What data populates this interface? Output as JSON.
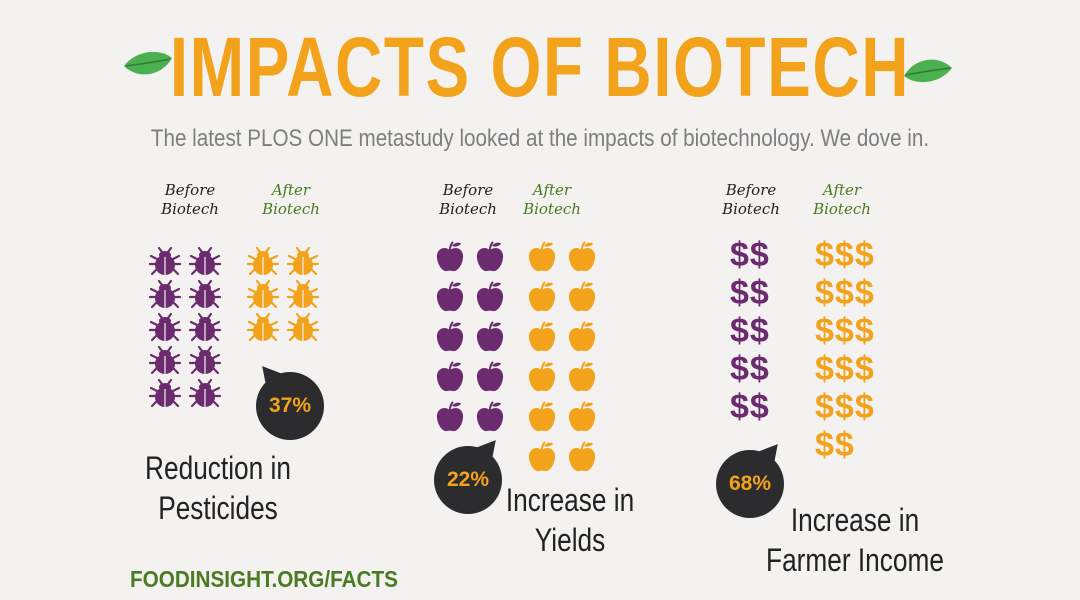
{
  "title": "IMPACTS OF BIOTECH",
  "subtitle": "The latest PLOS ONE metastudy looked at the impacts of biotechnology. We dove in.",
  "footer": "FOODINSIGHT.ORG/FACTS",
  "colors": {
    "before": "#6b2b6e",
    "after": "#f3a21b",
    "dark": "#2c2c2f",
    "leaf": "#4caf50"
  },
  "panels": [
    {
      "before_label": "Before\nBiotech",
      "after_label": "After\nBiotech",
      "icon": "bug-icon",
      "before_count": 10,
      "after_count": 6,
      "percent": "37%",
      "caption": "Reduction in Pesticides"
    },
    {
      "before_label": "Before\nBiotech",
      "after_label": "After\nBiotech",
      "icon": "apple-icon",
      "before_count": 10,
      "after_count": 12,
      "percent": "22%",
      "caption": "Increase in Yields"
    },
    {
      "before_label": "Before\nBiotech",
      "after_label": "After\nBiotech",
      "icon": "dollar-icon",
      "before_count": 10,
      "after_count": 17,
      "percent": "68%",
      "caption": "Increase in Farmer Income"
    }
  ],
  "chart_data": [
    {
      "type": "bar",
      "title": "Reduction in Pesticides",
      "categories": [
        "Before Biotech",
        "After Biotech"
      ],
      "values": [
        10,
        6
      ],
      "annotation": "37%",
      "unit": "bug-icon"
    },
    {
      "type": "bar",
      "title": "Increase in Yields",
      "categories": [
        "Before Biotech",
        "After Biotech"
      ],
      "values": [
        10,
        12
      ],
      "annotation": "22%",
      "unit": "apple-icon"
    },
    {
      "type": "bar",
      "title": "Increase in Farmer Income",
      "categories": [
        "Before Biotech",
        "After Biotech"
      ],
      "values": [
        10,
        17
      ],
      "annotation": "68%",
      "unit": "dollar-icon"
    }
  ]
}
